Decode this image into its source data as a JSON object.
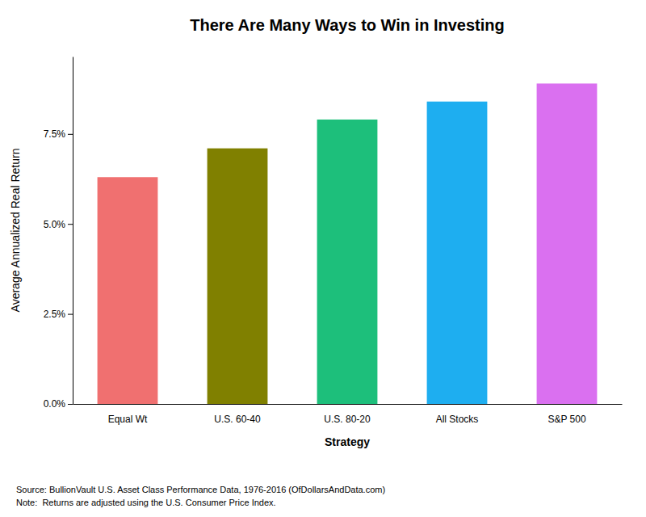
{
  "chart_data": {
    "type": "bar",
    "title": "There Are Many Ways to Win in Investing",
    "xlabel": "Strategy",
    "ylabel": "Average Annualized Real Return",
    "categories": [
      "Equal Wt",
      "U.S. 60-40",
      "U.S. 80-20",
      "All Stocks",
      "S&P 500"
    ],
    "values": [
      0.063,
      0.071,
      0.079,
      0.084,
      0.089
    ],
    "colors": [
      "#F07070",
      "#808000",
      "#1DBF7B",
      "#1EAEF0",
      "#DA70F0"
    ],
    "ylim": [
      0,
      0.0965
    ],
    "yticks": [
      {
        "value": 0.0,
        "label": "0.0%"
      },
      {
        "value": 0.025,
        "label": "2.5%"
      },
      {
        "value": 0.05,
        "label": "5.0%"
      },
      {
        "value": 0.075,
        "label": "7.5%"
      }
    ],
    "grid": false,
    "annotations": [
      "Source: BullionVault U.S. Asset Class Performance Data, 1976-2016 (OfDollarsAndData.com)",
      "Note:  Returns are adjusted using the U.S. Consumer Price Index."
    ]
  }
}
